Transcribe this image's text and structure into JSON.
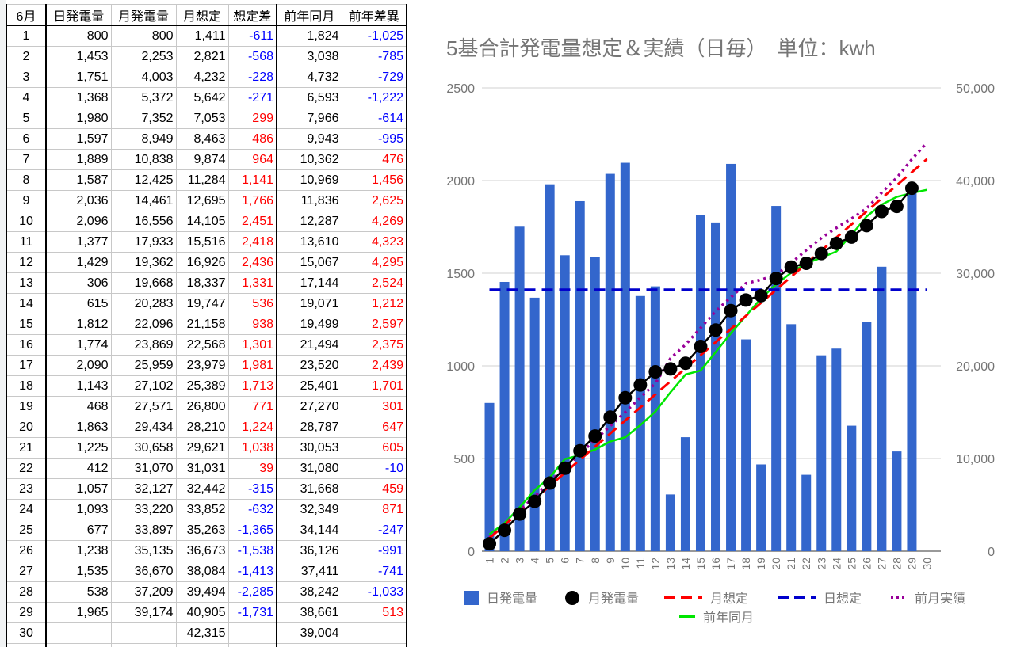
{
  "table": {
    "headers": [
      "6月",
      "日発電量",
      "月発電量",
      "月想定",
      "想定差",
      "前年同月",
      "前年差異"
    ],
    "rows": [
      [
        "1",
        "800",
        "800",
        "1,411",
        "-611",
        "1,824",
        "-1,025"
      ],
      [
        "2",
        "1,453",
        "2,253",
        "2,821",
        "-568",
        "3,038",
        "-785"
      ],
      [
        "3",
        "1,751",
        "4,003",
        "4,232",
        "-228",
        "4,732",
        "-729"
      ],
      [
        "4",
        "1,368",
        "5,372",
        "5,642",
        "-271",
        "6,593",
        "-1,222"
      ],
      [
        "5",
        "1,980",
        "7,352",
        "7,053",
        "299",
        "7,966",
        "-614"
      ],
      [
        "6",
        "1,597",
        "8,949",
        "8,463",
        "486",
        "9,943",
        "-995"
      ],
      [
        "7",
        "1,889",
        "10,838",
        "9,874",
        "964",
        "10,362",
        "476"
      ],
      [
        "8",
        "1,587",
        "12,425",
        "11,284",
        "1,141",
        "10,969",
        "1,456"
      ],
      [
        "9",
        "2,036",
        "14,461",
        "12,695",
        "1,766",
        "11,836",
        "2,625"
      ],
      [
        "10",
        "2,096",
        "16,556",
        "14,105",
        "2,451",
        "12,287",
        "4,269"
      ],
      [
        "11",
        "1,377",
        "17,933",
        "15,516",
        "2,418",
        "13,610",
        "4,323"
      ],
      [
        "12",
        "1,429",
        "19,362",
        "16,926",
        "2,436",
        "15,067",
        "4,295"
      ],
      [
        "13",
        "306",
        "19,668",
        "18,337",
        "1,331",
        "17,144",
        "2,524"
      ],
      [
        "14",
        "615",
        "20,283",
        "19,747",
        "536",
        "19,071",
        "1,212"
      ],
      [
        "15",
        "1,812",
        "22,096",
        "21,158",
        "938",
        "19,499",
        "2,597"
      ],
      [
        "16",
        "1,774",
        "23,869",
        "22,568",
        "1,301",
        "21,494",
        "2,375"
      ],
      [
        "17",
        "2,090",
        "25,959",
        "23,979",
        "1,981",
        "23,520",
        "2,439"
      ],
      [
        "18",
        "1,143",
        "27,102",
        "25,389",
        "1,713",
        "25,401",
        "1,701"
      ],
      [
        "19",
        "468",
        "27,571",
        "26,800",
        "771",
        "27,270",
        "301"
      ],
      [
        "20",
        "1,863",
        "29,434",
        "28,210",
        "1,224",
        "28,787",
        "647"
      ],
      [
        "21",
        "1,225",
        "30,658",
        "29,621",
        "1,038",
        "30,053",
        "605"
      ],
      [
        "22",
        "412",
        "31,070",
        "31,031",
        "39",
        "31,080",
        "-10"
      ],
      [
        "23",
        "1,057",
        "32,127",
        "32,442",
        "-315",
        "31,668",
        "459"
      ],
      [
        "24",
        "1,093",
        "33,220",
        "33,852",
        "-632",
        "32,349",
        "871"
      ],
      [
        "25",
        "677",
        "33,897",
        "35,263",
        "-1,365",
        "34,144",
        "-247"
      ],
      [
        "26",
        "1,238",
        "35,135",
        "36,673",
        "-1,538",
        "36,126",
        "-991"
      ],
      [
        "27",
        "1,535",
        "36,670",
        "38,084",
        "-1,413",
        "37,411",
        "-741"
      ],
      [
        "28",
        "538",
        "37,209",
        "39,494",
        "-2,285",
        "38,242",
        "-1,033"
      ],
      [
        "29",
        "1,965",
        "39,174",
        "40,905",
        "-1,731",
        "38,661",
        "513"
      ],
      [
        "30",
        "",
        "",
        "42,315",
        "",
        "39,004",
        ""
      ],
      [
        "",
        "",
        "",
        "",
        "",
        "",
        ""
      ]
    ]
  },
  "colors": {
    "negative": "#0000ff",
    "positive": "#ff0000"
  },
  "chart_data": {
    "type": "bar",
    "title": "5基合計発電量想定＆実績（日毎）　単位：kwh",
    "categories": [
      "1",
      "2",
      "3",
      "4",
      "5",
      "6",
      "7",
      "8",
      "9",
      "10",
      "11",
      "12",
      "13",
      "14",
      "15",
      "16",
      "17",
      "18",
      "19",
      "20",
      "21",
      "22",
      "23",
      "24",
      "25",
      "26",
      "27",
      "28",
      "29",
      "30"
    ],
    "left_axis": {
      "ylim": [
        0,
        2500
      ],
      "ticks": [
        0,
        500,
        1000,
        1500,
        2000,
        2500
      ],
      "tick_labels": [
        "0",
        "500",
        "1000",
        "1500",
        "2000",
        "2500"
      ]
    },
    "right_axis": {
      "ylim": [
        0,
        50000
      ],
      "ticks": [
        0,
        10000,
        20000,
        30000,
        40000,
        50000
      ],
      "tick_labels": [
        "0",
        "10,000",
        "20,000",
        "30,000",
        "40,000",
        "50,000"
      ]
    },
    "grid": true,
    "legend_position": "bottom",
    "series": [
      {
        "name": "日発電量",
        "kind": "bar",
        "axis": "left",
        "color": "#3366cc",
        "values": [
          800,
          1453,
          1751,
          1368,
          1980,
          1597,
          1889,
          1587,
          2036,
          2096,
          1377,
          1429,
          306,
          615,
          1812,
          1774,
          2090,
          1143,
          468,
          1863,
          1225,
          412,
          1057,
          1093,
          677,
          1238,
          1535,
          538,
          1965,
          null
        ]
      },
      {
        "name": "月発電量",
        "kind": "line-marker",
        "axis": "right",
        "color": "#000000",
        "values": [
          800,
          2253,
          4003,
          5372,
          7352,
          8949,
          10838,
          12425,
          14461,
          16556,
          17933,
          19362,
          19668,
          20283,
          22096,
          23869,
          25959,
          27102,
          27571,
          29434,
          30658,
          31070,
          32127,
          33220,
          33897,
          35135,
          36670,
          37209,
          39174,
          null
        ]
      },
      {
        "name": "月想定",
        "kind": "dashed-line",
        "axis": "right",
        "color": "#ff0000",
        "values": [
          1411,
          2821,
          4232,
          5642,
          7053,
          8463,
          9874,
          11284,
          12695,
          14105,
          15516,
          16926,
          18337,
          19747,
          21158,
          22568,
          23979,
          25389,
          26800,
          28210,
          29621,
          31031,
          32442,
          33852,
          35263,
          36673,
          38084,
          39494,
          40905,
          42315
        ]
      },
      {
        "name": "日想定",
        "kind": "dashed-line",
        "axis": "left",
        "color": "#0000cc",
        "values": [
          1411,
          1411,
          1411,
          1411,
          1411,
          1411,
          1411,
          1411,
          1411,
          1411,
          1411,
          1411,
          1411,
          1411,
          1411,
          1411,
          1411,
          1411,
          1411,
          1411,
          1411,
          1411,
          1411,
          1411,
          1411,
          1411,
          1411,
          1411,
          1411,
          1411
        ]
      },
      {
        "name": "前月実績",
        "kind": "dotted-line",
        "axis": "right",
        "color": "#990099",
        "values": [
          1470,
          2900,
          4400,
          5900,
          7500,
          9000,
          10500,
          12000,
          13500,
          15000,
          16600,
          18100,
          20800,
          22300,
          24100,
          25900,
          27400,
          28900,
          29300,
          29800,
          31100,
          32500,
          33800,
          34900,
          35900,
          37000,
          38700,
          40300,
          42300,
          44100
        ]
      },
      {
        "name": "前年同月",
        "kind": "line",
        "axis": "right",
        "color": "#00e600",
        "values": [
          1824,
          3038,
          4732,
          6593,
          7966,
          9943,
          10362,
          10969,
          11836,
          12287,
          13610,
          15067,
          17144,
          19071,
          19499,
          21494,
          23520,
          25401,
          27270,
          28787,
          30053,
          31080,
          31668,
          32349,
          34144,
          36126,
          37411,
          38242,
          38661,
          39004
        ]
      }
    ]
  }
}
